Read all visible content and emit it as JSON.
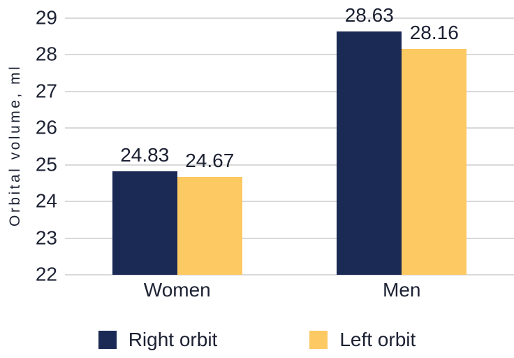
{
  "figure": {
    "background": "#ffffff",
    "text_color": "#1c2133"
  },
  "chart_data": {
    "type": "bar",
    "title": "",
    "xlabel": "",
    "ylabel": "Orbital volume, ml",
    "categories": [
      "Women",
      "Men"
    ],
    "series": [
      {
        "name": "Right orbit",
        "color": "#1b2a55",
        "values": [
          24.83,
          28.63
        ]
      },
      {
        "name": "Left orbit",
        "color": "#fcc963",
        "values": [
          24.67,
          28.16
        ]
      }
    ],
    "value_labels": [
      [
        "24.83",
        "28.63"
      ],
      [
        "24.67",
        "28.16"
      ]
    ],
    "ylim": [
      22,
      29
    ],
    "yticks": [
      22,
      23,
      24,
      25,
      26,
      27,
      28,
      29
    ],
    "grid": true,
    "gridline_color": "#d9d9d9",
    "legend_position": "bottom"
  }
}
